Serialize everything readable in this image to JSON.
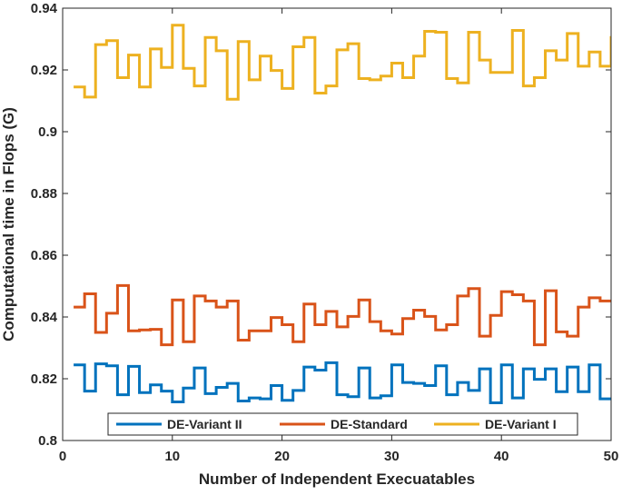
{
  "chart_data": {
    "type": "line",
    "step": true,
    "xlabel": "Number of Independent Execuatables",
    "ylabel": "Computational time in Flops (G)",
    "xlim": [
      0,
      50
    ],
    "ylim": [
      0.8,
      0.94
    ],
    "xticks": [
      0,
      10,
      20,
      30,
      40,
      50
    ],
    "yticks": [
      0.8,
      0.82,
      0.84,
      0.86,
      0.88,
      0.9,
      0.92,
      0.94
    ],
    "xtick_labels": [
      "0",
      "10",
      "20",
      "30",
      "40",
      "50"
    ],
    "ytick_labels": [
      "0.8",
      "0.82",
      "0.84",
      "0.86",
      "0.88",
      "0.9",
      "0.92",
      "0.94"
    ],
    "grid": false,
    "legend_position": "bottom",
    "x": [
      1,
      2,
      3,
      4,
      5,
      6,
      7,
      8,
      9,
      10,
      11,
      12,
      13,
      14,
      15,
      16,
      17,
      18,
      19,
      20,
      21,
      22,
      23,
      24,
      25,
      26,
      27,
      28,
      29,
      30,
      31,
      32,
      33,
      34,
      35,
      36,
      37,
      38,
      39,
      40,
      41,
      42,
      43,
      44,
      45,
      46,
      47,
      48,
      49,
      50
    ],
    "series": [
      {
        "name": "DE-Variant II",
        "color": "#0072BD",
        "values": [
          0.8245,
          0.816,
          0.8248,
          0.8242,
          0.8148,
          0.824,
          0.8155,
          0.818,
          0.816,
          0.8125,
          0.817,
          0.8235,
          0.8152,
          0.8172,
          0.8185,
          0.8128,
          0.8138,
          0.8135,
          0.8178,
          0.813,
          0.8162,
          0.8238,
          0.8228,
          0.8252,
          0.8148,
          0.8142,
          0.8235,
          0.8138,
          0.8145,
          0.8245,
          0.8188,
          0.8185,
          0.8178,
          0.8242,
          0.8148,
          0.8188,
          0.8162,
          0.8232,
          0.8122,
          0.8245,
          0.8138,
          0.8232,
          0.8198,
          0.8232,
          0.8158,
          0.8238,
          0.8158,
          0.8245,
          0.8135,
          0.8135
        ]
      },
      {
        "name": "DE-Standard",
        "color": "#D95319",
        "values": [
          0.8432,
          0.8475,
          0.835,
          0.8412,
          0.8502,
          0.8355,
          0.8358,
          0.836,
          0.831,
          0.8455,
          0.832,
          0.8468,
          0.8452,
          0.8432,
          0.8452,
          0.8325,
          0.8355,
          0.8355,
          0.8398,
          0.8375,
          0.832,
          0.8442,
          0.8375,
          0.8418,
          0.8368,
          0.8402,
          0.8455,
          0.8385,
          0.8355,
          0.8345,
          0.8395,
          0.8422,
          0.8402,
          0.8358,
          0.8375,
          0.8468,
          0.8492,
          0.8338,
          0.8405,
          0.8482,
          0.8472,
          0.8452,
          0.831,
          0.8485,
          0.8352,
          0.8338,
          0.8432,
          0.8462,
          0.8452,
          0.8452
        ]
      },
      {
        "name": "DE-Variant I",
        "color": "#EDB120",
        "values": [
          0.9145,
          0.9112,
          0.9282,
          0.9295,
          0.9175,
          0.9248,
          0.9145,
          0.9268,
          0.9208,
          0.9345,
          0.9205,
          0.9148,
          0.9305,
          0.9262,
          0.9105,
          0.9292,
          0.9168,
          0.9245,
          0.9198,
          0.914,
          0.9275,
          0.9305,
          0.9125,
          0.9148,
          0.9265,
          0.9285,
          0.9172,
          0.9168,
          0.918,
          0.9222,
          0.9175,
          0.9245,
          0.9325,
          0.9322,
          0.9172,
          0.9158,
          0.9322,
          0.9232,
          0.9192,
          0.9192,
          0.9328,
          0.9148,
          0.9175,
          0.9262,
          0.9232,
          0.9318,
          0.9212,
          0.9258,
          0.9212,
          0.9305
        ]
      }
    ]
  }
}
